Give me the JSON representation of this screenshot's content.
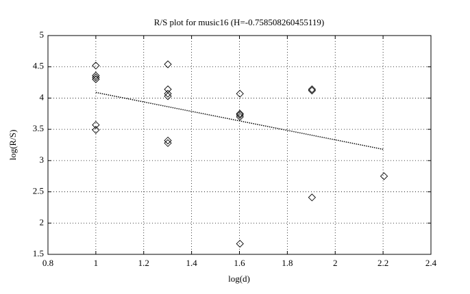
{
  "chart_data": {
    "type": "scatter",
    "title": "R/S plot for music16 (H=-0.758508260455119)",
    "xlabel": "log(d)",
    "ylabel": "log(R/S)",
    "x": [
      1.0,
      1.0,
      1.0,
      1.0,
      1.0,
      1.0,
      1.301,
      1.301,
      1.301,
      1.301,
      1.301,
      1.301,
      1.602,
      1.602,
      1.602,
      1.602,
      1.602,
      1.903,
      1.903,
      1.903,
      2.204
    ],
    "values": [
      4.52,
      4.36,
      4.33,
      4.3,
      3.57,
      3.49,
      4.54,
      4.14,
      4.07,
      4.03,
      3.32,
      3.28,
      4.07,
      3.75,
      3.73,
      3.7,
      1.67,
      4.14,
      4.12,
      2.41,
      2.75
    ],
    "color": "#000000",
    "marker": "diamond",
    "fit": {
      "x": [
        1.0,
        2.204
      ],
      "y": [
        4.09,
        3.177
      ]
    },
    "xlim": [
      0.8,
      2.4
    ],
    "ylim": [
      1.5,
      5
    ],
    "xticks": [
      0.8,
      1,
      1.2,
      1.4,
      1.6,
      1.8,
      2,
      2.2,
      2.4
    ],
    "yticks": [
      1.5,
      2,
      2.5,
      3,
      3.5,
      4,
      4.5,
      5
    ],
    "grid": true
  }
}
